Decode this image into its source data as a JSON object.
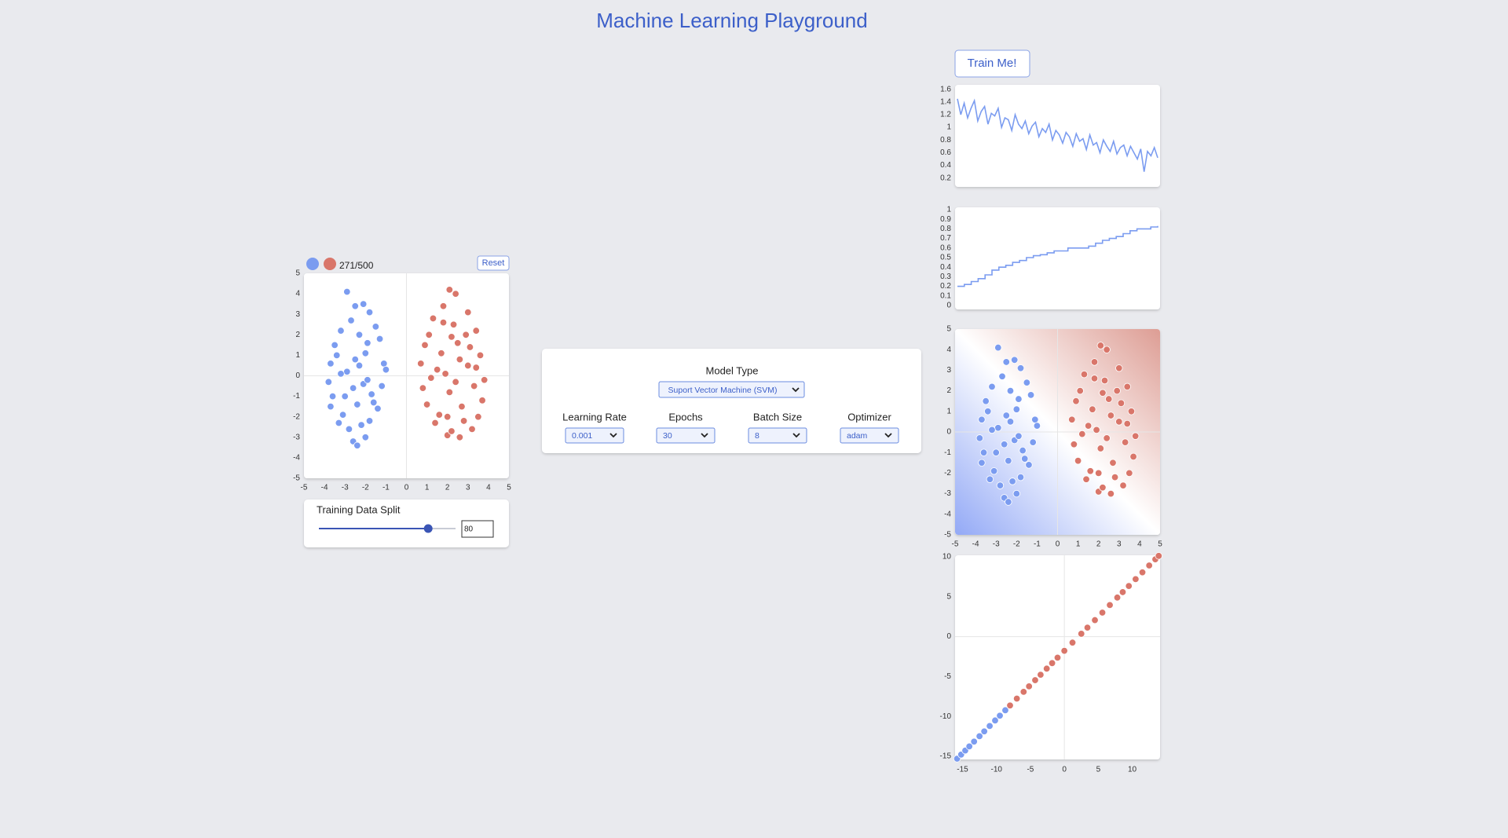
{
  "title": "Machine Learning Playground",
  "dataset": {
    "count_label": "271/500",
    "reset": "Reset",
    "split_label": "Training Data Split",
    "split_value": 80,
    "slider_range": [
      0,
      100
    ]
  },
  "controls": {
    "model_type_label": "Model Type",
    "model_type": "Suport Vector Machine (SVM)",
    "params": [
      {
        "label": "Learning Rate",
        "value": 0.001
      },
      {
        "label": "Epochs",
        "value": 30
      },
      {
        "label": "Batch Size",
        "value": 8
      },
      {
        "label": "Optimizer",
        "value": "adam"
      }
    ]
  },
  "train_button": "Train Me!",
  "chart_data": [
    {
      "type": "scatter",
      "xlim": [
        -5,
        5
      ],
      "ylim": [
        -5,
        5
      ],
      "xticks": [
        -5,
        -4,
        -3,
        -2,
        -1,
        0,
        1,
        2,
        3,
        4,
        5
      ],
      "yticks": [
        -5,
        -4,
        -3,
        -2,
        -1,
        0,
        1,
        2,
        3,
        4,
        5
      ],
      "series": [
        {
          "color": "#7b9cf0",
          "x": [
            -2.9,
            -2.5,
            -2.1,
            -1.8,
            -3.2,
            -3.5,
            -3.7,
            -1.5,
            -1.3,
            -1.1,
            -3.8,
            -3.6,
            -1.2,
            -1.0,
            -3.7,
            -1.4,
            -3.3,
            -2.2,
            -2.6,
            -2.4,
            -2.0,
            -1.8,
            -2.8,
            -3.1,
            -1.6,
            -3.4,
            -2.3,
            -2.7,
            -1.9,
            -2.5,
            -2.9,
            -2.1,
            -3.0,
            -1.7,
            -2.4,
            -2.6,
            -3.2,
            -2.0,
            -1.9,
            -2.3
          ],
          "y": [
            4.1,
            3.4,
            3.5,
            3.1,
            2.2,
            1.5,
            0.6,
            2.4,
            1.8,
            0.6,
            -0.3,
            -1.0,
            -0.5,
            0.3,
            -1.5,
            -1.6,
            -2.3,
            -2.4,
            -3.2,
            -3.4,
            -3.0,
            -2.2,
            -2.6,
            -1.9,
            -1.3,
            1.0,
            2.0,
            2.7,
            1.6,
            0.8,
            0.2,
            -0.4,
            -1.0,
            -0.9,
            -1.4,
            -0.6,
            0.1,
            1.1,
            -0.2,
            0.5
          ]
        },
        {
          "color": "#d9766a",
          "x": [
            2.1,
            2.4,
            1.8,
            3.0,
            3.4,
            1.3,
            1.1,
            0.9,
            0.7,
            3.6,
            3.8,
            0.8,
            3.7,
            1.0,
            3.5,
            1.4,
            3.2,
            2.0,
            2.6,
            2.2,
            1.6,
            2.8,
            3.0,
            1.9,
            2.5,
            2.3,
            2.9,
            1.7,
            3.3,
            2.1,
            2.7,
            1.5,
            3.1,
            2.4,
            1.2,
            2.0,
            2.6,
            3.4,
            1.8,
            2.2
          ],
          "y": [
            4.2,
            4.0,
            3.4,
            3.1,
            2.2,
            2.8,
            2.0,
            1.5,
            0.6,
            1.0,
            -0.2,
            -0.6,
            -1.2,
            -1.4,
            -2.0,
            -2.3,
            -2.6,
            -2.9,
            -3.0,
            -2.7,
            -1.9,
            -2.2,
            0.5,
            0.1,
            1.6,
            2.5,
            2.0,
            1.1,
            -0.5,
            -0.8,
            -1.5,
            0.3,
            1.4,
            -0.3,
            -0.1,
            -2.0,
            0.8,
            0.4,
            2.6,
            1.9
          ]
        }
      ]
    },
    {
      "type": "line",
      "color": "#7b9cf0",
      "ylim": [
        0.06,
        1.67
      ],
      "yticks": [
        0.2,
        0.4,
        0.6,
        0.8,
        1,
        1.2,
        1.4,
        1.6
      ],
      "values": [
        1.45,
        1.2,
        1.38,
        1.15,
        1.3,
        1.42,
        1.1,
        1.25,
        1.33,
        1.05,
        1.22,
        1.18,
        1.3,
        1.0,
        1.15,
        1.12,
        0.95,
        1.2,
        1.05,
        0.98,
        1.1,
        0.9,
        1.02,
        1.08,
        0.85,
        0.98,
        0.92,
        1.05,
        0.8,
        0.95,
        0.88,
        0.75,
        0.92,
        0.85,
        0.7,
        0.9,
        0.78,
        0.82,
        0.65,
        0.88,
        0.72,
        0.76,
        0.6,
        0.8,
        0.7,
        0.62,
        0.78,
        0.58,
        0.68,
        0.72,
        0.55,
        0.7,
        0.6,
        0.5,
        0.66,
        0.3,
        0.62,
        0.55,
        0.68,
        0.52
      ]
    },
    {
      "type": "step",
      "color": "#7b9cf0",
      "ylim": [
        0,
        1
      ],
      "yticks": [
        0,
        0.1,
        0.2,
        0.3,
        0.4,
        0.5,
        0.6,
        0.7,
        0.8,
        0.9,
        1
      ],
      "values": [
        0.2,
        0.22,
        0.25,
        0.28,
        0.32,
        0.37,
        0.4,
        0.42,
        0.45,
        0.47,
        0.5,
        0.52,
        0.53,
        0.55,
        0.57,
        0.57,
        0.6,
        0.6,
        0.6,
        0.62,
        0.65,
        0.68,
        0.7,
        0.72,
        0.75,
        0.78,
        0.8,
        0.8,
        0.82,
        0.83
      ]
    },
    {
      "type": "scatter",
      "xlim": [
        -5,
        5
      ],
      "ylim": [
        -5,
        5
      ],
      "background_colors": [
        "#93a9f6",
        "#ffffff",
        "#dd9d94"
      ],
      "xticks": [
        -5,
        -4,
        -3,
        -2,
        -1,
        0,
        1,
        2,
        3,
        4,
        5
      ],
      "yticks": [
        -5,
        -4,
        -3,
        -2,
        -1,
        0,
        1,
        2,
        3,
        4,
        5
      ],
      "series": [
        {
          "color": "#7b9cf0",
          "x": [
            -2.9,
            -2.5,
            -2.1,
            -1.8,
            -3.2,
            -3.5,
            -3.7,
            -1.5,
            -1.3,
            -1.1,
            -3.8,
            -3.6,
            -1.2,
            -1.0,
            -3.7,
            -1.4,
            -3.3,
            -2.2,
            -2.6,
            -2.4,
            -2.0,
            -1.8,
            -2.8,
            -3.1,
            -1.6,
            -3.4,
            -2.3,
            -2.7,
            -1.9,
            -2.5,
            -2.9,
            -2.1,
            -3.0,
            -1.7,
            -2.4,
            -2.6,
            -3.2,
            -2.0,
            -1.9,
            -2.3
          ],
          "y": [
            4.1,
            3.4,
            3.5,
            3.1,
            2.2,
            1.5,
            0.6,
            2.4,
            1.8,
            0.6,
            -0.3,
            -1.0,
            -0.5,
            0.3,
            -1.5,
            -1.6,
            -2.3,
            -2.4,
            -3.2,
            -3.4,
            -3.0,
            -2.2,
            -2.6,
            -1.9,
            -1.3,
            1.0,
            2.0,
            2.7,
            1.6,
            0.8,
            0.2,
            -0.4,
            -1.0,
            -0.9,
            -1.4,
            -0.6,
            0.1,
            1.1,
            -0.2,
            0.5
          ]
        },
        {
          "color": "#d9766a",
          "x": [
            2.1,
            2.4,
            1.8,
            3.0,
            3.4,
            1.3,
            1.1,
            0.9,
            0.7,
            3.6,
            3.8,
            0.8,
            3.7,
            1.0,
            3.5,
            1.4,
            3.2,
            2.0,
            2.6,
            2.2,
            1.6,
            2.8,
            3.0,
            1.9,
            2.5,
            2.3,
            2.9,
            1.7,
            3.3,
            2.1,
            2.7,
            1.5,
            3.1,
            2.4,
            1.2,
            2.0,
            2.6,
            3.4,
            1.8,
            2.2
          ],
          "y": [
            4.2,
            4.0,
            3.4,
            3.1,
            2.2,
            2.8,
            2.0,
            1.5,
            0.6,
            1.0,
            -0.2,
            -0.6,
            -1.2,
            -1.4,
            -2.0,
            -2.3,
            -2.6,
            -2.9,
            -3.0,
            -2.7,
            -1.9,
            -2.2,
            0.5,
            0.1,
            1.6,
            2.5,
            2.0,
            1.1,
            -0.5,
            -0.8,
            -1.5,
            0.3,
            1.4,
            -0.3,
            -0.1,
            -2.0,
            0.8,
            0.4,
            2.6,
            1.9
          ]
        }
      ]
    },
    {
      "type": "scatter",
      "xlim": [
        -16.1,
        14.1
      ],
      "ylim": [
        -15.4,
        10.2
      ],
      "xticks": [
        -15,
        -10,
        -5,
        0,
        5,
        10
      ],
      "yticks": [
        -15,
        -10,
        -5,
        0,
        5,
        10
      ],
      "series": [
        {
          "color": "#7b9cf0",
          "x": [
            -15.8,
            -15.2,
            -14.6,
            -14.0,
            -13.3,
            -12.5,
            -11.8,
            -11.0,
            -10.2,
            -9.5,
            -8.7
          ],
          "y": [
            -15.3,
            -14.79,
            -14.28,
            -13.76,
            -13.16,
            -12.48,
            -11.88,
            -11.2,
            -10.51,
            -9.91,
            -9.23
          ]
        },
        {
          "color": "#d9766a",
          "x": [
            -8.0,
            -7.0,
            -6.0,
            -5.2,
            -4.3,
            -3.5,
            -2.6,
            -1.8,
            -1.0,
            0,
            1.2,
            2.5,
            3.4,
            4.5,
            5.6,
            6.7,
            7.8,
            8.6,
            9.5,
            10.5,
            11.5,
            12.5,
            13.4,
            13.9
          ],
          "y": [
            -8.63,
            -7.77,
            -6.92,
            -6.23,
            -5.46,
            -4.78,
            -4.01,
            -3.32,
            -2.64,
            -1.78,
            -0.75,
            0.36,
            1.13,
            2.07,
            3.01,
            3.96,
            4.9,
            5.58,
            6.35,
            7.21,
            8.06,
            8.92,
            9.69,
            10.12
          ]
        }
      ]
    }
  ]
}
